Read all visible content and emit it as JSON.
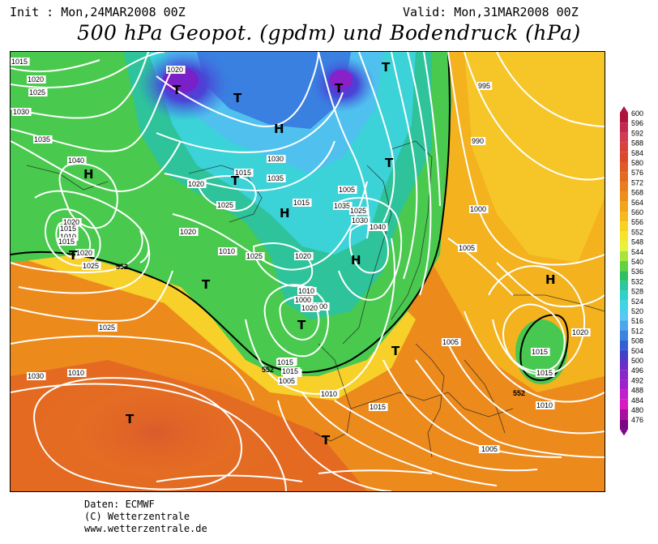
{
  "header": {
    "init": "Init : Mon,24MAR2008 00Z",
    "valid": "Valid: Mon,31MAR2008 00Z",
    "title": "500 hPa Geopot. (gpdm) und Bodendruck (hPa)"
  },
  "legend": {
    "values": [
      "600",
      "596",
      "592",
      "588",
      "584",
      "580",
      "576",
      "572",
      "568",
      "564",
      "560",
      "556",
      "552",
      "548",
      "544",
      "540",
      "536",
      "532",
      "528",
      "524",
      "520",
      "516",
      "512",
      "508",
      "504",
      "500",
      "496",
      "492",
      "488",
      "484",
      "480",
      "476"
    ],
    "colors": [
      "#b0143c",
      "#c4284c",
      "#d23c50",
      "#d8423c",
      "#dc4a2c",
      "#e05a24",
      "#e46a20",
      "#e97c1e",
      "#ee8e1c",
      "#f2a41c",
      "#f6ba1e",
      "#fad024",
      "#f6e42c",
      "#e8f23a",
      "#a8e43c",
      "#60d440",
      "#30c060",
      "#2cc8a0",
      "#30d0cc",
      "#40d4e6",
      "#58c8f0",
      "#4ca8ec",
      "#3c84e0",
      "#3060d4",
      "#4040c8",
      "#6830c4",
      "#8828c8",
      "#a020cc",
      "#c020cc",
      "#d818c0",
      "#a810a0",
      "#7a0884"
    ]
  },
  "map": {
    "pressure_labels": [
      "1015",
      "1020",
      "1025",
      "1030",
      "1035",
      "1040",
      "1020",
      "1015",
      "1010",
      "1015",
      "1020",
      "1025",
      "1020",
      "1015",
      "1020",
      "1025",
      "1030",
      "1035",
      "1015",
      "1010",
      "1020",
      "1025",
      "1020",
      "1000",
      "1010",
      "1025",
      "1030",
      "1005",
      "1000",
      "995",
      "1000",
      "1005",
      "1040",
      "1035",
      "1030",
      "1025",
      "995",
      "990",
      "1000",
      "1005",
      "1010",
      "1020",
      "1015",
      "1015",
      "1005",
      "1005",
      "1010",
      "1015",
      "1020",
      "1025",
      "1015",
      "1020",
      "1015",
      "1005",
      "1010"
    ],
    "height_labels": [
      "552",
      "552",
      "552"
    ],
    "centers": [
      "T",
      "T",
      "T",
      "T",
      "H",
      "H",
      "H",
      "T",
      "T",
      "T",
      "T",
      "H",
      "T",
      "T",
      "T",
      "T",
      "H"
    ]
  },
  "credits": {
    "line1": "Daten: ECMWF",
    "line2": "(C) Wetterzentrale",
    "line3": "www.wetterzentrale.de"
  }
}
